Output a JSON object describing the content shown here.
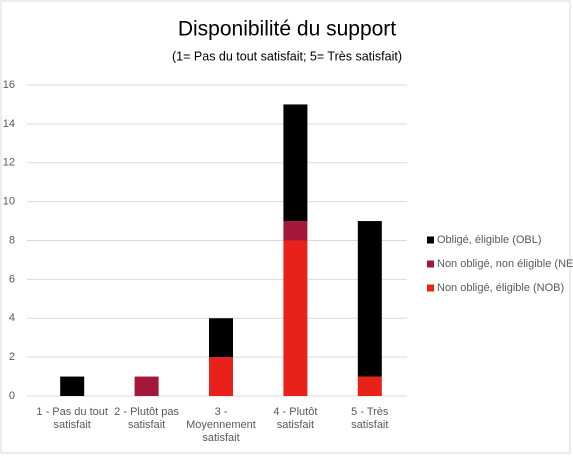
{
  "chart_data": {
    "type": "bar",
    "stacked": true,
    "title": "Disponibilité du support",
    "subtitle": "(1= Pas du tout satisfait; 5= Très satisfait)",
    "categories": [
      "1 - Pas du tout satisfait",
      "2 - Plutôt pas satisfait",
      "3 - Moyennement satisfait",
      "4 - Plutôt satisfait",
      "5 - Très satisfait"
    ],
    "series": [
      {
        "name": "Obligé, éligible (OBL)",
        "color": "#000000",
        "values": [
          1,
          0,
          2,
          6,
          8
        ]
      },
      {
        "name": "Non obligé, non éligible (NEL)",
        "color": "#a3173a",
        "values": [
          0,
          1,
          0,
          1,
          0
        ]
      },
      {
        "name": "Non obligé, éligible (NOB)",
        "color": "#e8211b",
        "values": [
          0,
          0,
          2,
          8,
          1
        ]
      }
    ],
    "ylim": [
      0,
      16
    ],
    "yticks": [
      0,
      2,
      4,
      6,
      8,
      10,
      12,
      14,
      16
    ],
    "grid": true,
    "legend": "right"
  }
}
